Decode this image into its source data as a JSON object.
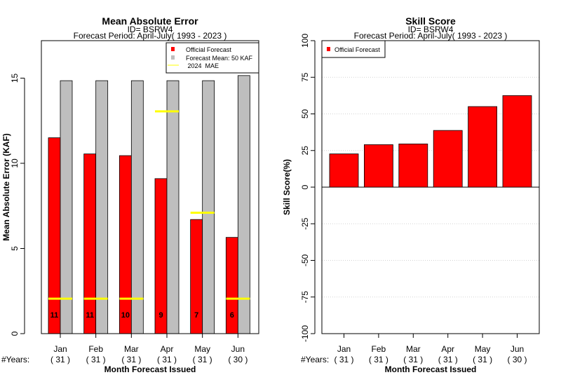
{
  "chart_data": [
    {
      "type": "bar",
      "title": "Mean Absolute Error",
      "subtitle_lines": [
        "ID= BSRW4",
        "Forecast Period: April-July( 1993 - 2023 )"
      ],
      "xlabel": "Month Forecast Issued",
      "ylabel": "Mean Absolute Error (KAF)",
      "ylim": [
        0,
        17.2
      ],
      "yticks": [
        "0",
        "5",
        "10",
        "15"
      ],
      "ytick_values": [
        0,
        5,
        10,
        15
      ],
      "categories": [
        "Jan",
        "Feb",
        "Mar",
        "Apr",
        "May",
        "Jun"
      ],
      "years_label": "#Years:",
      "years": [
        "( 31 )",
        "( 31 )",
        "( 31 )",
        "( 31 )",
        "( 31 )",
        "( 30 )"
      ],
      "series": [
        {
          "name": "Official Forecast",
          "color": "#ff0000",
          "values": [
            11.5,
            10.55,
            10.45,
            9.1,
            6.7,
            5.65
          ]
        },
        {
          "name": "Forecast Mean: 50 KAF",
          "color": "#bebebe",
          "values": [
            14.85,
            14.85,
            14.85,
            14.85,
            14.85,
            15.15
          ]
        },
        {
          "name": " 2024  MAE",
          "color": "#ffff00",
          "values": [
            2.05,
            2.05,
            2.05,
            13.05,
            7.1,
            2.05
          ]
        }
      ],
      "bar_labels": [
        "11",
        "11",
        "10",
        "9",
        "7",
        "6"
      ],
      "legend_position": "top-right",
      "grid": false
    },
    {
      "type": "bar",
      "title": "Skill Score",
      "subtitle_lines": [
        "ID= BSRW4",
        "Forecast Period: April-July( 1993 - 2023 )"
      ],
      "xlabel": "Month Forecast Issued",
      "ylabel": "Skill Score(%)",
      "ylim": [
        -100,
        100
      ],
      "yticks": [
        "-100",
        "-75",
        "-50",
        "-25",
        "0",
        "25",
        "50",
        "75",
        "100"
      ],
      "ytick_values": [
        -100,
        -75,
        -50,
        -25,
        0,
        25,
        50,
        75,
        100
      ],
      "categories": [
        "Jan",
        "Feb",
        "Mar",
        "Apr",
        "May",
        "Jun"
      ],
      "years_label": "#Years:",
      "years": [
        "( 31 )",
        "( 31 )",
        "( 31 )",
        "( 31 )",
        "( 31 )",
        "( 30 )"
      ],
      "series": [
        {
          "name": "Official Forecast",
          "color": "#ff0000",
          "values": [
            22.7,
            29.0,
            29.5,
            38.7,
            55.0,
            62.5
          ]
        }
      ],
      "legend_position": "top-left",
      "grid": true
    }
  ]
}
